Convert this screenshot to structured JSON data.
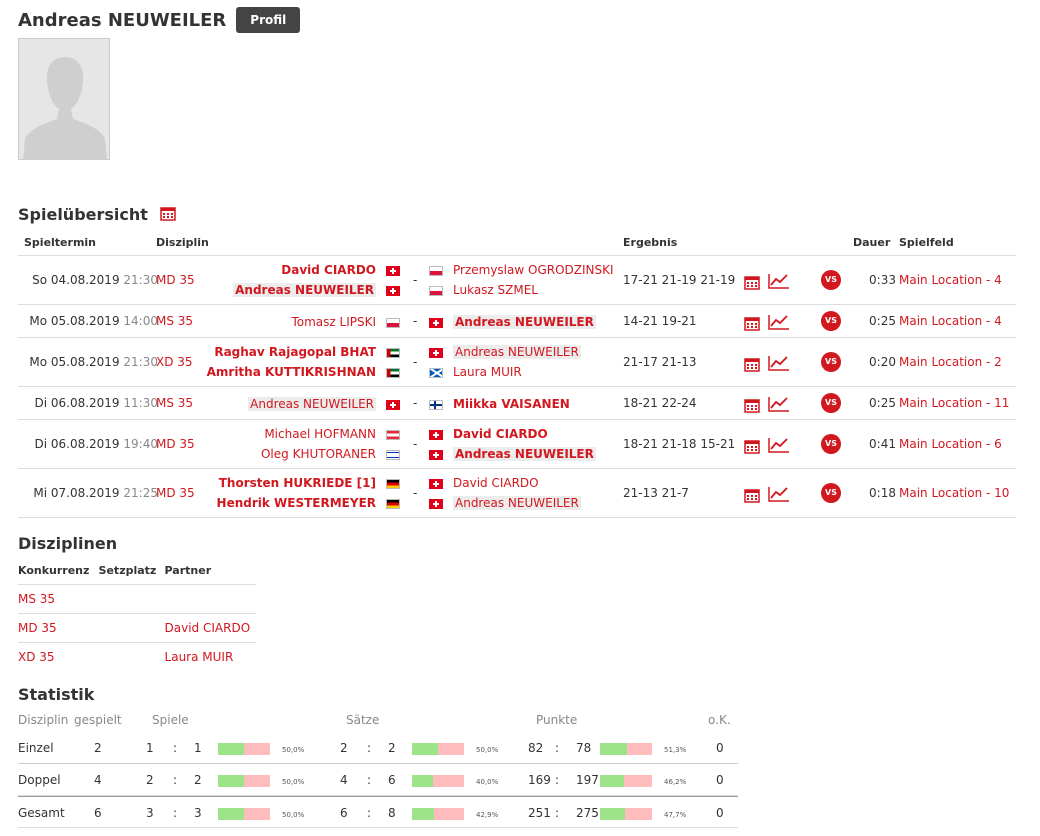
{
  "player": {
    "name": "Andreas NEUWEILER",
    "profile_button": "Profil"
  },
  "matches": {
    "title": "Spielübersicht",
    "headers": {
      "date": "Spieltermin",
      "discipline": "Disziplin",
      "result": "Ergebnis",
      "duration": "Dauer",
      "court": "Spielfeld"
    },
    "vs_label": "VS",
    "rows": [
      {
        "date": "So 04.08.2019",
        "time": "21:30",
        "discipline": "MD 35",
        "team1": [
          {
            "name": "David CIARDO",
            "flag": "ch",
            "bold": true,
            "hl": false
          },
          {
            "name": "Andreas NEUWEILER",
            "flag": "ch",
            "bold": true,
            "hl": true
          }
        ],
        "team2": [
          {
            "name": "Przemyslaw OGRODZINSKI",
            "flag": "pl",
            "bold": false,
            "hl": false
          },
          {
            "name": "Lukasz SZMEL",
            "flag": "pl",
            "bold": false,
            "hl": false
          }
        ],
        "result": "17-21 21-19 21-19",
        "duration": "0:33",
        "court": "Main Location - 4"
      },
      {
        "date": "Mo 05.08.2019",
        "time": "14:00",
        "discipline": "MS 35",
        "team1": [
          {
            "name": "Tomasz LIPSKI",
            "flag": "pl",
            "bold": false,
            "hl": false
          }
        ],
        "team2": [
          {
            "name": "Andreas NEUWEILER",
            "flag": "ch",
            "bold": true,
            "hl": true
          }
        ],
        "result": "14-21 19-21",
        "duration": "0:25",
        "court": "Main Location - 4"
      },
      {
        "date": "Mo 05.08.2019",
        "time": "21:30",
        "discipline": "XD 35",
        "team1": [
          {
            "name": "Raghav Rajagopal BHAT",
            "flag": "ae",
            "bold": true,
            "hl": false
          },
          {
            "name": "Amritha KUTTIKRISHNAN",
            "flag": "ae",
            "bold": true,
            "hl": false
          }
        ],
        "team2": [
          {
            "name": "Andreas NEUWEILER",
            "flag": "ch",
            "bold": false,
            "hl": true
          },
          {
            "name": "Laura MUIR",
            "flag": "sco",
            "bold": false,
            "hl": false
          }
        ],
        "result": "21-17 21-13",
        "duration": "0:20",
        "court": "Main Location - 2"
      },
      {
        "date": "Di 06.08.2019",
        "time": "11:30",
        "discipline": "MS 35",
        "team1": [
          {
            "name": "Andreas NEUWEILER",
            "flag": "ch",
            "bold": false,
            "hl": true
          }
        ],
        "team2": [
          {
            "name": "Miikka VAISANEN",
            "flag": "fi",
            "bold": true,
            "hl": false
          }
        ],
        "result": "18-21 22-24",
        "duration": "0:25",
        "court": "Main Location - 11"
      },
      {
        "date": "Di 06.08.2019",
        "time": "19:40",
        "discipline": "MD 35",
        "team1": [
          {
            "name": "Michael HOFMANN",
            "flag": "at",
            "bold": false,
            "hl": false
          },
          {
            "name": "Oleg KHUTORANER",
            "flag": "il",
            "bold": false,
            "hl": false
          }
        ],
        "team2": [
          {
            "name": "David CIARDO",
            "flag": "ch",
            "bold": true,
            "hl": false
          },
          {
            "name": "Andreas NEUWEILER",
            "flag": "ch",
            "bold": true,
            "hl": true
          }
        ],
        "result": "18-21 21-18 15-21",
        "duration": "0:41",
        "court": "Main Location - 6"
      },
      {
        "date": "Mi 07.08.2019",
        "time": "21:25",
        "discipline": "MD 35",
        "team1": [
          {
            "name": "Thorsten HUKRIEDE [1]",
            "flag": "de",
            "bold": true,
            "hl": false
          },
          {
            "name": "Hendrik WESTERMEYER",
            "flag": "de",
            "bold": true,
            "hl": false
          }
        ],
        "team2": [
          {
            "name": "David CIARDO",
            "flag": "ch",
            "bold": false,
            "hl": false
          },
          {
            "name": "Andreas NEUWEILER",
            "flag": "ch",
            "bold": false,
            "hl": true
          }
        ],
        "result": "21-13 21-7",
        "duration": "0:18",
        "court": "Main Location - 10"
      }
    ]
  },
  "disciplines": {
    "title": "Disziplinen",
    "headers": {
      "event": "Konkurrenz",
      "seed": "Setzplatz",
      "partner": "Partner"
    },
    "rows": [
      {
        "event": "MS 35",
        "seed": "",
        "partner": ""
      },
      {
        "event": "MD 35",
        "seed": "",
        "partner": "David CIARDO"
      },
      {
        "event": "XD 35",
        "seed": "",
        "partner": "Laura MUIR"
      }
    ]
  },
  "stats": {
    "title": "Statistik",
    "headers": {
      "discipline": "Disziplin",
      "played": "gespielt",
      "games": "Spiele",
      "sets": "Sätze",
      "points": "Punkte",
      "wo": "o.K."
    },
    "rows": [
      {
        "label": "Einzel",
        "played": "2",
        "games": [
          "1",
          "1"
        ],
        "games_pct": "50,0%",
        "games_frac": 0.5,
        "sets": [
          "2",
          "2"
        ],
        "sets_pct": "50,0%",
        "sets_frac": 0.5,
        "points": [
          "82",
          "78"
        ],
        "points_pct": "51,3%",
        "points_frac": 0.513,
        "wo": "0"
      },
      {
        "label": "Doppel",
        "played": "4",
        "games": [
          "2",
          "2"
        ],
        "games_pct": "50,0%",
        "games_frac": 0.5,
        "sets": [
          "4",
          "6"
        ],
        "sets_pct": "40,0%",
        "sets_frac": 0.4,
        "points": [
          "169",
          "197"
        ],
        "points_pct": "46,2%",
        "points_frac": 0.462,
        "wo": "0"
      },
      {
        "label": "Gesamt",
        "played": "6",
        "games": [
          "3",
          "3"
        ],
        "games_pct": "50,0%",
        "games_frac": 0.5,
        "sets": [
          "6",
          "8"
        ],
        "sets_pct": "42,9%",
        "sets_frac": 0.429,
        "points": [
          "251",
          "275"
        ],
        "points_pct": "47,7%",
        "points_frac": 0.477,
        "wo": "0"
      }
    ]
  }
}
